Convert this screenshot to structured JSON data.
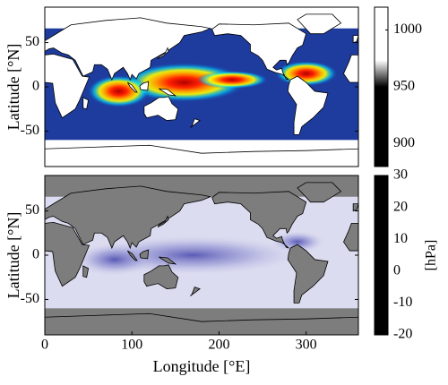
{
  "chart_data": [
    {
      "type": "heatmap",
      "ylabel": "Latitude [°N]",
      "xlim": [
        0,
        360
      ],
      "ylim": [
        -90,
        90
      ],
      "yticks": [
        -50,
        0,
        50
      ],
      "colorbar": {
        "lim": [
          880,
          1020
        ],
        "ticks": [
          900,
          950,
          1000
        ],
        "colors": [
          "#7f0000",
          "#ff0000",
          "#ff9900",
          "#ffff00",
          "#00e5ff",
          "#0066ff",
          "#00007f"
        ]
      }
    },
    {
      "type": "heatmap",
      "xlabel": "Longitude [°E]",
      "ylabel": "Latitude [°N]",
      "xlim": [
        0,
        360
      ],
      "ylim": [
        -90,
        90
      ],
      "xticks": [
        0,
        100,
        200,
        300
      ],
      "yticks": [
        -50,
        0,
        50
      ],
      "colorbar": {
        "label": "[hPa]",
        "lim": [
          -20,
          30
        ],
        "ticks": [
          -20,
          -10,
          0,
          10,
          20,
          30
        ],
        "colors": [
          "#ff0000",
          "#ff9a9a",
          "#ffffff",
          "#b4b4e2",
          "#6a6ac4",
          "#2e2e96"
        ]
      }
    }
  ]
}
